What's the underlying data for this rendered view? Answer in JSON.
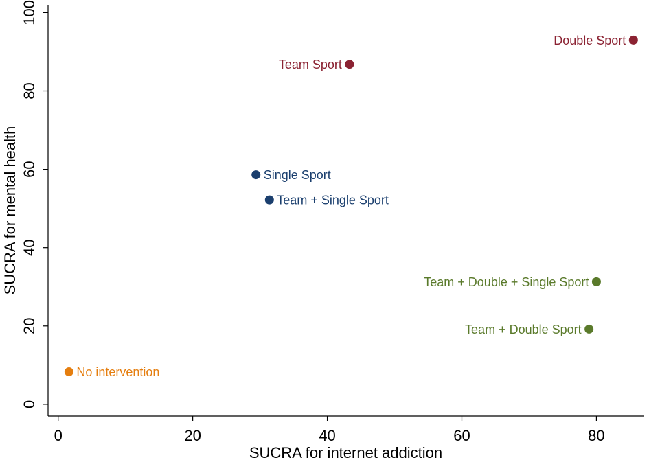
{
  "chart_data": {
    "type": "scatter",
    "xlabel": "SUCRA for internet addiction",
    "ylabel": "SUCRA for mental health",
    "xlim": [
      -1.5,
      87
    ],
    "ylim": [
      -3,
      102
    ],
    "xticks": [
      0,
      20,
      40,
      60,
      80
    ],
    "yticks": [
      0,
      20,
      40,
      60,
      80,
      100
    ],
    "grid": false,
    "points": [
      {
        "label": "Double Sport",
        "x": 85.5,
        "y": 93.0,
        "color": "#8b2232",
        "label_side": "left"
      },
      {
        "label": "Team Sport",
        "x": 43.3,
        "y": 86.8,
        "color": "#8b2232",
        "label_side": "left"
      },
      {
        "label": "Single Sport",
        "x": 29.4,
        "y": 58.6,
        "color": "#1b3f6e",
        "label_side": "right"
      },
      {
        "label": "Team + Single Sport",
        "x": 31.4,
        "y": 52.2,
        "color": "#1b3f6e",
        "label_side": "right"
      },
      {
        "label": "Team + Double + Single Sport",
        "x": 80.0,
        "y": 31.3,
        "color": "#5a7a2b",
        "label_side": "left"
      },
      {
        "label": "Team + Double Sport",
        "x": 78.9,
        "y": 19.2,
        "color": "#5a7a2b",
        "label_side": "left"
      },
      {
        "label": "No intervention",
        "x": 1.6,
        "y": 8.3,
        "color": "#e57e0f",
        "label_side": "right"
      }
    ]
  }
}
